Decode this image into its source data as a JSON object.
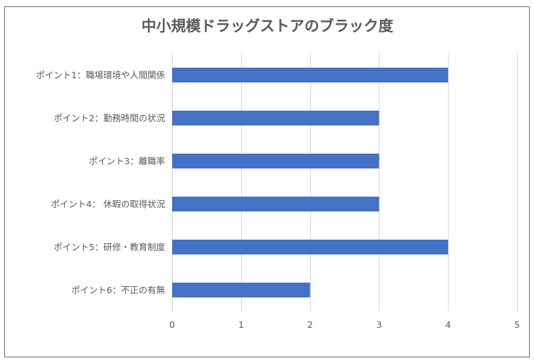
{
  "chart_data": {
    "type": "bar",
    "orientation": "horizontal",
    "title": "中小規模ドラッグストアのブラック度",
    "categories": [
      "ポイント1：職場環境や人間関係",
      "ポイント2：勤務時間の状況",
      "ポイント3：離職率",
      "ポイント4： 休暇の取得状況",
      "ポイント5：研修・教育制度",
      "ポイント6：不正の有無"
    ],
    "values": [
      4,
      3,
      3,
      3,
      4,
      2
    ],
    "xlim": [
      0,
      5
    ],
    "xticks": [
      "0",
      "1",
      "2",
      "3",
      "4",
      "5"
    ],
    "grid": true,
    "legend": "none",
    "bar_color": "#4472c4"
  }
}
